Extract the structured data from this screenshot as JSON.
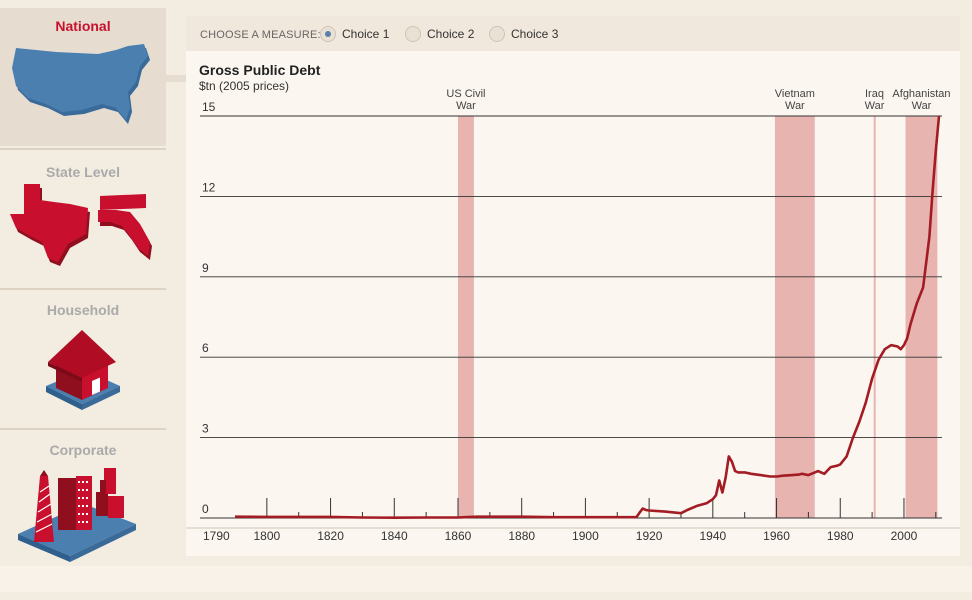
{
  "nav": {
    "items": [
      {
        "label": "National",
        "icon": "us-map-icon",
        "active": true
      },
      {
        "label": "State Level",
        "icon": "texas-florida-icon",
        "active": false
      },
      {
        "label": "Household",
        "icon": "house-icon",
        "active": false
      },
      {
        "label": "Corporate",
        "icon": "buildings-icon",
        "active": false
      }
    ]
  },
  "measure": {
    "label": "CHOOSE A MEASURE:",
    "choices": [
      {
        "label": "Choice 1",
        "selected": true
      },
      {
        "label": "Choice 2",
        "selected": false
      },
      {
        "label": "Choice 3",
        "selected": false
      }
    ]
  },
  "colors": {
    "accent": "#c8102e",
    "line": "#a31c24",
    "band": "#e8b4b0",
    "us_blue": "#4a7fb0"
  },
  "chart_data": {
    "type": "line",
    "title": "Gross Public Debt",
    "subtitle": "$tn (2005 prices)",
    "xlim": [
      1790,
      2011
    ],
    "ylim": [
      0,
      15
    ],
    "yticks": [
      0,
      3,
      6,
      9,
      12,
      15
    ],
    "ytick_labels": [
      "0",
      "3",
      "6",
      "9",
      "12",
      "15"
    ],
    "xtick_labels": [
      "1790",
      "1800",
      "1820",
      "1840",
      "1860",
      "1880",
      "1900",
      "1920",
      "1940",
      "1960",
      "1980",
      "2000"
    ],
    "xticks": [
      1790,
      1800,
      1820,
      1840,
      1860,
      1880,
      1900,
      1920,
      1940,
      1960,
      1980,
      2000
    ],
    "grid": true,
    "annotations": [
      {
        "label": [
          "US Civil",
          "War"
        ],
        "start": 1860,
        "end": 1865
      },
      {
        "label": [
          "Vietnam",
          "War"
        ],
        "start": 1959.5,
        "end": 1972
      },
      {
        "label": [
          "Iraq",
          "War"
        ],
        "start": 1990.5,
        "end": 1991
      },
      {
        "label": [
          "Afghanistan",
          "War"
        ],
        "start": 2000.5,
        "end": 2010.5
      }
    ],
    "series": [
      {
        "x": [
          1790,
          1800,
          1810,
          1820,
          1830,
          1840,
          1850,
          1860,
          1862,
          1866,
          1870,
          1880,
          1890,
          1900,
          1910,
          1915,
          1916,
          1917,
          1918,
          1919,
          1920,
          1925,
          1930,
          1932,
          1935,
          1938,
          1940,
          1941,
          1942,
          1943,
          1944,
          1945,
          1946,
          1947,
          1948,
          1950,
          1952,
          1955,
          1958,
          1960,
          1962,
          1965,
          1967,
          1968,
          1970,
          1972,
          1973,
          1975,
          1977,
          1979,
          1980,
          1982,
          1984,
          1986,
          1988,
          1990,
          1992,
          1994,
          1996,
          1998,
          1999,
          2000,
          2001,
          2002,
          2004,
          2006,
          2008,
          2009,
          2010,
          2011
        ],
        "y": [
          0.05,
          0.04,
          0.04,
          0.04,
          0.02,
          0.01,
          0.02,
          0.02,
          0.03,
          0.05,
          0.05,
          0.05,
          0.03,
          0.03,
          0.03,
          0.03,
          0.03,
          0.2,
          0.35,
          0.3,
          0.28,
          0.24,
          0.18,
          0.3,
          0.45,
          0.55,
          0.7,
          0.85,
          1.4,
          0.95,
          1.5,
          2.3,
          2.1,
          1.75,
          1.7,
          1.7,
          1.65,
          1.6,
          1.55,
          1.55,
          1.58,
          1.6,
          1.62,
          1.65,
          1.6,
          1.7,
          1.75,
          1.65,
          1.9,
          1.95,
          2.0,
          2.3,
          3.0,
          3.6,
          4.3,
          5.2,
          5.9,
          6.3,
          6.45,
          6.4,
          6.3,
          6.45,
          6.7,
          7.2,
          8.0,
          8.6,
          10.5,
          12.2,
          13.7,
          15
        ]
      }
    ]
  }
}
